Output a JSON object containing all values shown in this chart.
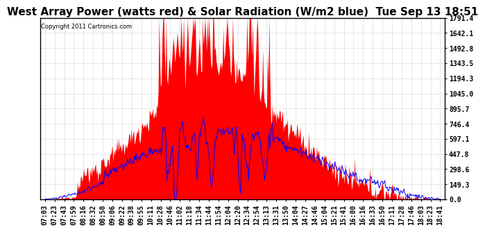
{
  "title": "West Array Power (watts red) & Solar Radiation (W/m2 blue)  Tue Sep 13 18:51",
  "copyright": "Copyright 2011 Cartronics.com",
  "ylim": [
    0.0,
    1791.4
  ],
  "yticks": [
    0.0,
    149.3,
    298.6,
    447.8,
    597.1,
    746.4,
    895.7,
    1045.0,
    1194.3,
    1343.5,
    1492.8,
    1642.1,
    1791.4
  ],
  "xtick_labels": [
    "07:03",
    "07:23",
    "07:43",
    "07:59",
    "08:16",
    "08:32",
    "08:50",
    "09:06",
    "09:22",
    "09:38",
    "09:55",
    "10:11",
    "10:28",
    "10:46",
    "11:02",
    "11:18",
    "11:34",
    "11:44",
    "11:54",
    "12:04",
    "12:20",
    "12:34",
    "12:54",
    "13:13",
    "13:31",
    "13:50",
    "14:04",
    "14:27",
    "14:46",
    "15:04",
    "15:21",
    "15:41",
    "16:00",
    "16:16",
    "16:33",
    "16:50",
    "17:11",
    "17:28",
    "17:46",
    "18:03",
    "18:23",
    "18:41"
  ],
  "background_color": "#ffffff",
  "plot_bg_color": "#ffffff",
  "grid_color": "#aaaaaa",
  "red_color": "#ff0000",
  "blue_color": "#0000ff",
  "title_fontsize": 11,
  "tick_fontsize": 7.0
}
